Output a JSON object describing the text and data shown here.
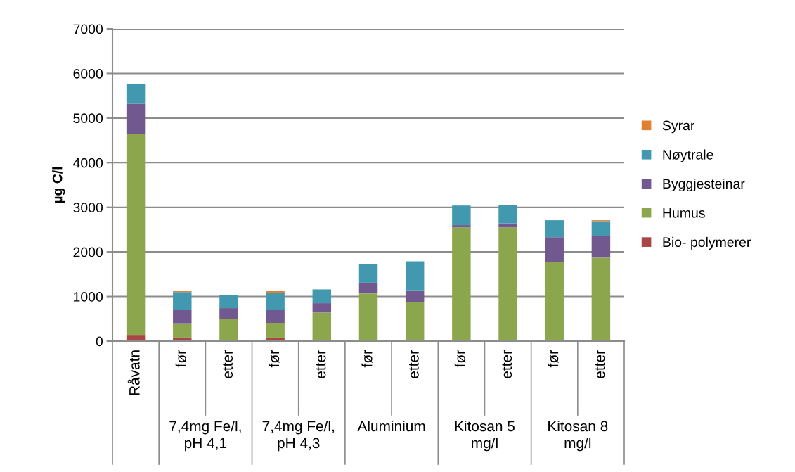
{
  "chart_data": {
    "type": "bar",
    "stacked": true,
    "ylabel": "µg C/l",
    "categories": [
      "Råvatn",
      "før",
      "etter",
      "før",
      "etter",
      "før",
      "etter",
      "før",
      "etter",
      "før",
      "etter"
    ],
    "series": [
      {
        "name": "Bio- polymerer",
        "color": "#a94544",
        "values": [
          140,
          80,
          null,
          80,
          null,
          null,
          null,
          null,
          10,
          10,
          10
        ]
      },
      {
        "name": "Humus",
        "color": "#8ba64d",
        "values": [
          4510,
          320,
          500,
          330,
          640,
          1070,
          870,
          2550,
          2540,
          1760,
          1860
        ]
      },
      {
        "name": "Byggjesteinar",
        "color": "#71588f",
        "values": [
          670,
          300,
          240,
          290,
          210,
          240,
          270,
          50,
          90,
          560,
          490
        ]
      },
      {
        "name": "Nøytrale",
        "color": "#4198af",
        "values": [
          440,
          400,
          300,
          380,
          310,
          420,
          650,
          440,
          410,
          380,
          330
        ]
      },
      {
        "name": "Syrar",
        "color": "#e08030",
        "values": [
          null,
          30,
          null,
          40,
          null,
          null,
          null,
          null,
          null,
          null,
          20
        ]
      }
    ],
    "annotations": [
      "7,4mg Fe/l, pH 4,1",
      "7,4mg Fe/l, pH 4,3",
      "Aluminium",
      "Kitosan 5 mg/l",
      "Kitosan 8 mg/l"
    ],
    "ylim": [
      0,
      7000
    ],
    "yticks": [
      0,
      1000,
      2000,
      3000,
      4000,
      5000,
      6000,
      7000
    ],
    "grid": "y",
    "legend": "right"
  }
}
